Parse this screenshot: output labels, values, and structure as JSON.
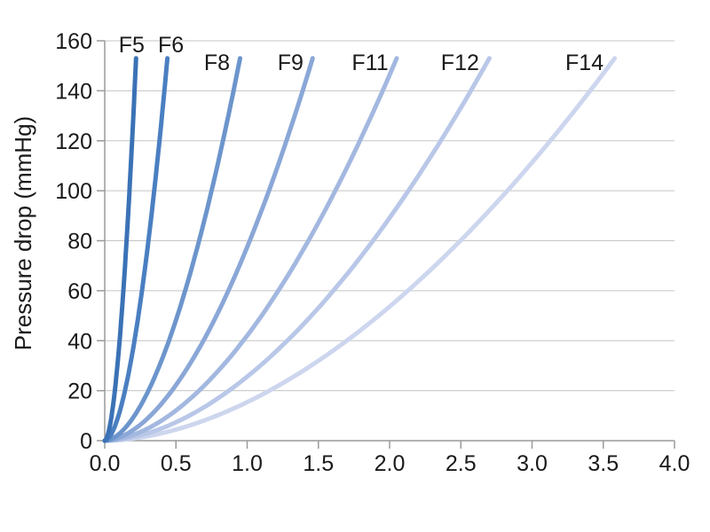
{
  "chart_data": {
    "type": "line",
    "title": "",
    "xlabel": "",
    "ylabel": "Pressure drop (mmHg)",
    "xlim": [
      0,
      4.0
    ],
    "ylim": [
      0,
      160
    ],
    "xtick_values": [
      0,
      0.5,
      1.0,
      1.5,
      2.0,
      2.5,
      3.0,
      3.5,
      4.0
    ],
    "xtick_labels": [
      "0.0",
      "0.5",
      "1.0",
      "1.5",
      "2.0",
      "2.5",
      "3.0",
      "3.5",
      "4.0"
    ],
    "ytick_values": [
      0,
      20,
      40,
      60,
      80,
      100,
      120,
      140,
      160
    ],
    "ytick_labels": [
      "0",
      "20",
      "40",
      "60",
      "80",
      "100",
      "120",
      "140",
      "160"
    ],
    "grid": "horizontal",
    "legend_position": "inline-labels-at-curve-tops",
    "curve_peak_pressure": 153,
    "curve_shape_exponent": 1.8,
    "series": [
      {
        "name": "F5",
        "color": "#3b72b6",
        "x_end": 0.22,
        "points": [
          [
            0,
            0
          ],
          [
            0.07,
            20
          ],
          [
            0.1,
            40
          ],
          [
            0.13,
            60
          ],
          [
            0.15,
            80
          ],
          [
            0.17,
            100
          ],
          [
            0.19,
            120
          ],
          [
            0.21,
            140
          ],
          [
            0.22,
            153
          ]
        ]
      },
      {
        "name": "F6",
        "color": "#4a7fc1",
        "x_end": 0.44,
        "points": [
          [
            0,
            0
          ],
          [
            0.14,
            20
          ],
          [
            0.21,
            40
          ],
          [
            0.26,
            60
          ],
          [
            0.31,
            80
          ],
          [
            0.35,
            100
          ],
          [
            0.38,
            120
          ],
          [
            0.42,
            140
          ],
          [
            0.44,
            153
          ]
        ]
      },
      {
        "name": "F8",
        "color": "#6c95cc",
        "x_end": 0.95,
        "points": [
          [
            0,
            0
          ],
          [
            0.31,
            20
          ],
          [
            0.45,
            40
          ],
          [
            0.56,
            60
          ],
          [
            0.66,
            80
          ],
          [
            0.75,
            100
          ],
          [
            0.83,
            120
          ],
          [
            0.9,
            140
          ],
          [
            0.95,
            153
          ]
        ]
      },
      {
        "name": "F9",
        "color": "#8aa7d7",
        "x_end": 1.46,
        "points": [
          [
            0,
            0
          ],
          [
            0.47,
            20
          ],
          [
            0.69,
            40
          ],
          [
            0.87,
            60
          ],
          [
            1.02,
            80
          ],
          [
            1.15,
            100
          ],
          [
            1.28,
            120
          ],
          [
            1.39,
            140
          ],
          [
            1.46,
            153
          ]
        ]
      },
      {
        "name": "F11",
        "color": "#a3b8e0",
        "x_end": 2.05,
        "points": [
          [
            0,
            0
          ],
          [
            0.66,
            20
          ],
          [
            0.97,
            40
          ],
          [
            1.22,
            60
          ],
          [
            1.43,
            80
          ],
          [
            1.62,
            100
          ],
          [
            1.79,
            120
          ],
          [
            1.95,
            140
          ],
          [
            2.05,
            153
          ]
        ]
      },
      {
        "name": "F12",
        "color": "#b9c7e8",
        "x_end": 2.7,
        "points": [
          [
            0,
            0
          ],
          [
            0.87,
            20
          ],
          [
            1.28,
            40
          ],
          [
            1.6,
            60
          ],
          [
            1.88,
            80
          ],
          [
            2.13,
            100
          ],
          [
            2.36,
            120
          ],
          [
            2.57,
            140
          ],
          [
            2.7,
            153
          ]
        ]
      },
      {
        "name": "F14",
        "color": "#cdd6ee",
        "x_end": 3.58,
        "points": [
          [
            0,
            0
          ],
          [
            1.16,
            20
          ],
          [
            1.7,
            40
          ],
          [
            2.13,
            60
          ],
          [
            2.5,
            80
          ],
          [
            2.83,
            100
          ],
          [
            3.13,
            120
          ],
          [
            3.41,
            140
          ],
          [
            3.58,
            153
          ]
        ]
      }
    ],
    "colors": {
      "background": "#ffffff",
      "gridline": "#c5c5c5",
      "axis": "#9a9a9a",
      "text": "#1a1a1a"
    }
  }
}
